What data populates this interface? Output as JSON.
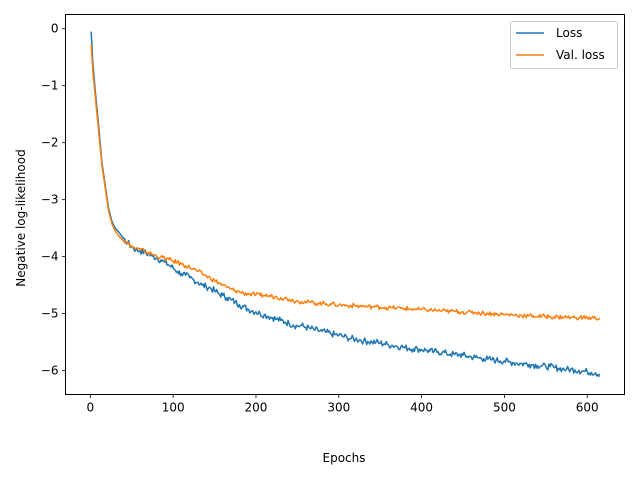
{
  "chart_data": {
    "type": "line",
    "title": "",
    "xlabel": "Epochs",
    "ylabel": "Negative log-likelihood",
    "xlim": [
      -30,
      645
    ],
    "ylim": [
      -6.42,
      0.25
    ],
    "xticks": [
      0,
      100,
      200,
      300,
      400,
      500,
      600
    ],
    "yticks": [
      0,
      -1,
      -2,
      -3,
      -4,
      -5,
      -6
    ],
    "xtick_labels": [
      "0",
      "100",
      "200",
      "300",
      "400",
      "500",
      "600"
    ],
    "ytick_labels": [
      "0",
      "−1",
      "−2",
      "−3",
      "−4",
      "−5",
      "−6"
    ],
    "grid": false,
    "legend_position": "top-right",
    "series": [
      {
        "name": "Loss",
        "color": "#1f77b4",
        "x": [
          1,
          3,
          6,
          10,
          14,
          18,
          22,
          26,
          30,
          35,
          40,
          45,
          50,
          55,
          60,
          65,
          70,
          75,
          80,
          85,
          90,
          95,
          100,
          105,
          110,
          115,
          120,
          125,
          130,
          135,
          140,
          145,
          150,
          155,
          160,
          165,
          170,
          175,
          180,
          185,
          190,
          195,
          200,
          205,
          210,
          215,
          220,
          225,
          230,
          235,
          240,
          245,
          250,
          255,
          260,
          265,
          270,
          275,
          280,
          285,
          290,
          295,
          300,
          305,
          310,
          315,
          320,
          325,
          330,
          335,
          340,
          345,
          350,
          355,
          360,
          365,
          370,
          375,
          380,
          385,
          390,
          395,
          400,
          405,
          410,
          415,
          420,
          425,
          430,
          435,
          440,
          445,
          450,
          455,
          460,
          465,
          470,
          475,
          480,
          485,
          490,
          495,
          500,
          505,
          510,
          515,
          520,
          525,
          530,
          535,
          540,
          545,
          550,
          555,
          560,
          565,
          570,
          575,
          580,
          585,
          590,
          595,
          600,
          605,
          610,
          615
        ],
        "y": [
          -0.05,
          -0.6,
          -1.1,
          -1.7,
          -2.35,
          -2.75,
          -3.15,
          -3.38,
          -3.5,
          -3.58,
          -3.68,
          -3.76,
          -3.82,
          -3.88,
          -3.9,
          -3.92,
          -3.96,
          -3.99,
          -4.02,
          -4.06,
          -4.1,
          -4.15,
          -4.2,
          -4.26,
          -4.3,
          -4.33,
          -4.37,
          -4.41,
          -4.45,
          -4.5,
          -4.53,
          -4.55,
          -4.6,
          -4.65,
          -4.68,
          -4.72,
          -4.76,
          -4.8,
          -4.84,
          -4.88,
          -4.92,
          -4.95,
          -4.97,
          -5.0,
          -5.02,
          -5.05,
          -5.07,
          -5.1,
          -5.12,
          -5.15,
          -5.17,
          -5.2,
          -5.22,
          -5.21,
          -5.24,
          -5.26,
          -5.28,
          -5.3,
          -5.31,
          -5.33,
          -5.35,
          -5.37,
          -5.38,
          -5.4,
          -5.42,
          -5.44,
          -5.45,
          -5.46,
          -5.48,
          -5.49,
          -5.5,
          -5.5,
          -5.52,
          -5.53,
          -5.55,
          -5.56,
          -5.57,
          -5.58,
          -5.6,
          -5.61,
          -5.62,
          -5.62,
          -5.63,
          -5.64,
          -5.66,
          -5.67,
          -5.67,
          -5.68,
          -5.7,
          -5.71,
          -5.72,
          -5.72,
          -5.73,
          -5.75,
          -5.76,
          -5.77,
          -5.78,
          -5.79,
          -5.8,
          -5.81,
          -5.82,
          -5.83,
          -5.83,
          -5.85,
          -5.86,
          -5.87,
          -5.88,
          -5.88,
          -5.89,
          -5.9,
          -5.91,
          -5.92,
          -5.93,
          -5.93,
          -5.95,
          -5.96,
          -5.97,
          -5.98,
          -5.98,
          -5.99,
          -6.0,
          -6.01,
          -6.02,
          -6.03,
          -6.04,
          -6.06
        ]
      },
      {
        "name": "Val. loss",
        "color": "#ff7f0e",
        "x": [
          1,
          3,
          6,
          10,
          14,
          18,
          22,
          26,
          30,
          35,
          40,
          45,
          50,
          55,
          60,
          65,
          70,
          75,
          80,
          85,
          90,
          95,
          100,
          105,
          110,
          115,
          120,
          125,
          130,
          135,
          140,
          145,
          150,
          155,
          160,
          165,
          170,
          175,
          180,
          185,
          190,
          195,
          200,
          205,
          210,
          215,
          220,
          225,
          230,
          235,
          240,
          245,
          250,
          255,
          260,
          265,
          270,
          275,
          280,
          285,
          290,
          295,
          300,
          305,
          310,
          315,
          320,
          325,
          330,
          335,
          340,
          345,
          350,
          355,
          360,
          365,
          370,
          375,
          380,
          385,
          390,
          395,
          400,
          405,
          410,
          415,
          420,
          425,
          430,
          435,
          440,
          445,
          450,
          455,
          460,
          465,
          470,
          475,
          480,
          485,
          490,
          495,
          500,
          505,
          510,
          515,
          520,
          525,
          530,
          535,
          540,
          545,
          550,
          555,
          560,
          565,
          570,
          575,
          580,
          585,
          590,
          595,
          600,
          605,
          610,
          615
        ],
        "y": [
          -0.28,
          -0.75,
          -1.2,
          -1.8,
          -2.4,
          -2.8,
          -3.2,
          -3.42,
          -3.55,
          -3.65,
          -3.72,
          -3.77,
          -3.82,
          -3.86,
          -3.88,
          -3.9,
          -3.93,
          -3.96,
          -3.99,
          -4.01,
          -4.03,
          -4.05,
          -4.08,
          -4.1,
          -4.13,
          -4.16,
          -4.19,
          -4.22,
          -4.26,
          -4.3,
          -4.34,
          -4.38,
          -4.42,
          -4.46,
          -4.5,
          -4.54,
          -4.57,
          -4.6,
          -4.62,
          -4.64,
          -4.65,
          -4.66,
          -4.67,
          -4.68,
          -4.68,
          -4.69,
          -4.7,
          -4.71,
          -4.72,
          -4.73,
          -4.75,
          -4.77,
          -4.78,
          -4.79,
          -4.8,
          -4.8,
          -4.81,
          -4.82,
          -4.82,
          -4.83,
          -4.83,
          -4.84,
          -4.85,
          -4.85,
          -4.86,
          -4.86,
          -4.86,
          -4.87,
          -4.87,
          -4.88,
          -4.88,
          -4.88,
          -4.89,
          -4.89,
          -4.9,
          -4.9,
          -4.9,
          -4.91,
          -4.91,
          -4.92,
          -4.92,
          -4.93,
          -4.93,
          -4.93,
          -4.94,
          -4.94,
          -4.95,
          -4.95,
          -4.96,
          -4.96,
          -4.96,
          -4.97,
          -4.97,
          -4.98,
          -4.98,
          -4.98,
          -4.99,
          -4.99,
          -5.0,
          -5.0,
          -5.01,
          -5.01,
          -5.02,
          -5.02,
          -5.02,
          -5.03,
          -5.03,
          -5.04,
          -5.04,
          -5.04,
          -5.05,
          -5.05,
          -5.05,
          -5.05,
          -5.06,
          -5.06,
          -5.06,
          -5.06,
          -5.07,
          -5.07,
          -5.07,
          -5.07,
          -5.07,
          -5.08,
          -5.08,
          -5.08
        ]
      }
    ]
  }
}
